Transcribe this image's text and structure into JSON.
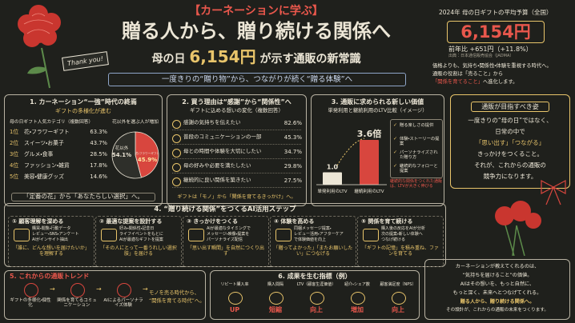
{
  "header": {
    "label": "【カーネーションに学ぶ】",
    "title": "贈る人から、贈り続ける関係へ",
    "subtitle": [
      "母の日",
      "6,154円",
      "が示す通販の新常識"
    ],
    "banner": "一度きりの“贈り物”から、つながりが続く“贈る体験”へ",
    "card": "Thank you!"
  },
  "budget": {
    "label": "2024年 母の日ギフトの平均予算（全国）",
    "amount": "6,154円",
    "change": "前年比 +651円（+11.8%）",
    "source": "出典：日本通信販売協会（JADMA）",
    "lines": [
      "価格よりも、気持ち・関係性・体験を重視する時代へ。",
      "通販の役割は「売ること」から"
    ],
    "highlight": "「関係を育てること」",
    "tail": "へ進化します。"
  },
  "panel1": {
    "title": "1. カーネーション“一強”時代の終焉",
    "subtitle": "ギフトの多様化が進む",
    "list_title": "母の日ギフト人気カテゴリ（複数回答）",
    "rows": [
      [
        "1位",
        "花・フラワーギフト",
        "63.3%"
      ],
      [
        "2位",
        "スイーツ・お菓子",
        "43.7%"
      ],
      [
        "3位",
        "グルメ・食事",
        "28.5%"
      ],
      [
        "4位",
        "ファッション・雑貨",
        "17.8%"
      ],
      [
        "5位",
        "美容・健康グッズ",
        "14.6%"
      ]
    ],
    "pie_title": "花以外を選ぶ人が増加",
    "pie": {
      "labels": [
        "花以外",
        "花・フラワーギフト"
      ],
      "values": [
        54.1,
        45.9
      ],
      "value_labels": [
        "54.1%",
        "45.9%"
      ],
      "colors": [
        "#2e2f2a",
        "#d8463e"
      ]
    },
    "footer": "「定番の花」から「あなたらしい選択」へ。"
  },
  "panel2": {
    "title": "2. 買う理由は“感謝”から“関係性”へ",
    "subtitle": "ギフトに込める想いの変化（複数回答）",
    "rows": [
      [
        "感謝の気持ちを伝えたい",
        "82.6%"
      ],
      [
        "普段のコミュニケーションの一部",
        "45.3%"
      ],
      [
        "母との時間や体験を大切にしたい",
        "34.7%"
      ],
      [
        "母の好みや必要を満たしたい",
        "29.8%"
      ],
      [
        "継続的に良い関係を築きたい",
        "27.5%"
      ]
    ],
    "footer": "ギフトは「モノ」から「関係を育てるきっかけ」へ。"
  },
  "panel3": {
    "title": "3. 通販に求められる新しい価値",
    "subtitle": "単発利用と継続利用のLTV比較（イメージ）",
    "bars": {
      "labels": [
        "単発利用のLTV",
        "継続利用のLTV"
      ],
      "values": [
        1.0,
        3.6
      ],
      "value_labels": [
        "1.0",
        "3.6倍"
      ],
      "colors": [
        "#ece6d6",
        "#d8463e"
      ]
    },
    "checklist": [
      "贈る楽しさの提供",
      "体験・ストーリーの提案",
      "パーソナライズされた贈り方",
      "継続的なフォローと提案"
    ],
    "note": "継続的な関係をつくれた通販は、LTVが大きく伸びる"
  },
  "panel4": {
    "title": "通販が目指すべき姿",
    "lines": [
      "一度きりの“母の日”ではなく、",
      "日常の中で",
      "「思い出す」「つながる」",
      "きっかけをつくること。",
      "それが、これからの通販の",
      "競争力になります。"
    ]
  },
  "section4": {
    "title": "4. “贈り続ける関係”をつくるAI活用ステップ",
    "steps": [
      {
        "title": "① 顧客理解を深める",
        "desc": [
          "購買・閲覧・行動データ",
          "レビュー・SNS・アンケート",
          "AIがインサイト抽出"
        ],
        "quote": "「誰に、どんな想いを届けたいか」を理解する"
      },
      {
        "title": "② 最適な提案を設計する",
        "desc": [
          "好み・関係性・記念日",
          "ライフイベントをもとに",
          "AIが最適なギフトを提案"
        ],
        "quote": "「その人にとって一番うれしい選択肢」を届ける"
      },
      {
        "title": "③ きっかけをつくる",
        "desc": [
          "AIが最適なタイミングで",
          "メッセージ・映像・提案を",
          "パーソナライズ配信"
        ],
        "quote": "「思い出す瞬間」を自然につくり出す"
      },
      {
        "title": "④ 体験を高める",
        "desc": [
          "同梱メッセージ提案・",
          "レビュー活用・アフターケア",
          "で体験価値を向上"
        ],
        "quote": "「贈ってよかった」「またお願いしたい」につなげる"
      },
      {
        "title": "⑤ 関係を育て続ける",
        "desc": [
          "購入後の反応をAIが分析",
          "次の提案・新しい体験へ",
          "つなげ続ける"
        ],
        "quote": "「ギフトの記憶」を積み重ね、ファンを育てる"
      }
    ]
  },
  "section5": {
    "title": "5. これからの通販トレンド",
    "items": [
      "ギフトの多様化・個性化",
      "関係を育てるコミュニケーション",
      "AIによるパーソナライズ体験"
    ],
    "conclusion": [
      "モノを売る時代から、",
      "“関係を育てる時代”へ。"
    ]
  },
  "section6": {
    "title": "6. 成果を生む指標（例）",
    "metrics": [
      {
        "name": "リピート購入率",
        "result": "UP"
      },
      {
        "name": "購入間隔",
        "result": "短縮"
      },
      {
        "name": "LTV（顧客生涯価値）",
        "result": "向上"
      },
      {
        "name": "紹介・シェア数",
        "result": "増加"
      },
      {
        "name": "顧客満足度（NPS）",
        "result": "向上"
      }
    ]
  },
  "closing": {
    "lines": [
      "カーネーションが教えてくれるのは、",
      "“気持ちを届けること”の価値。",
      "AIはその想いを、もっと自然に、",
      "もっと深く、未来へとつなげてくれる。",
      "贈る人から、贈り続ける関係へ。",
      "その設計が、これからの通販の未来をつくります。"
    ]
  }
}
